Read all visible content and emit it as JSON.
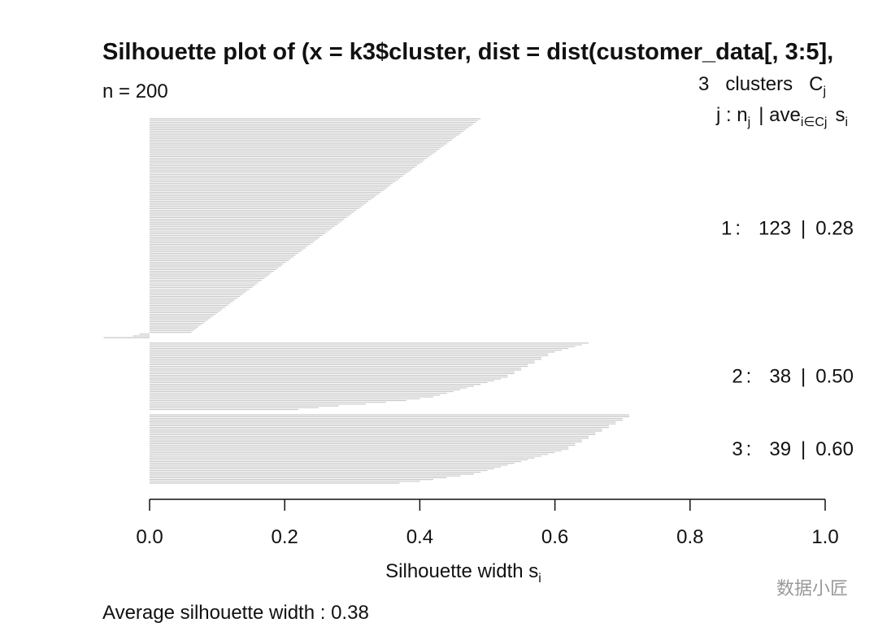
{
  "chart_data": {
    "type": "silhouette",
    "title": "Silhouette plot of (x = k3$cluster, dist = dist(customer_data[, 3:5],",
    "n_text": "n =",
    "n": 200,
    "cluster_header": {
      "count": 3,
      "word": "clusters",
      "symbol": "C",
      "symbol_sub": "j"
    },
    "column_header": [
      {
        "text": "j :  n",
        "sub": "j"
      },
      {
        "text": "| ave",
        "sub": "i∈Cj"
      },
      {
        "text": "s",
        "sub": "i"
      }
    ],
    "separators": [
      ":",
      "|"
    ],
    "clusters": {
      "ids": [
        1,
        2,
        3
      ],
      "sizes": [
        123,
        38,
        39
      ],
      "averages": [
        0.28,
        0.5,
        0.6
      ],
      "average_labels": [
        "0.28",
        "0.50",
        "0.60"
      ]
    },
    "x_label": "Silhouette width s",
    "x_label_sub": "i",
    "footer_text": "Average silhouette width :",
    "average": 0.38,
    "watermark": "数据小匠",
    "xlim": [
      0,
      1
    ],
    "xticks": [
      {
        "value": 0,
        "label": "0.0"
      },
      0.2,
      0.4,
      0.6,
      0.8,
      {
        "value": 1,
        "label": "1.0"
      }
    ],
    "series": [
      {
        "name": "1",
        "color": "#c8c8c8",
        "values": [
          0.49,
          0.486,
          0.483,
          0.479,
          0.476,
          0.472,
          0.468,
          0.465,
          0.461,
          0.458,
          0.454,
          0.45,
          0.447,
          0.443,
          0.44,
          0.436,
          0.432,
          0.429,
          0.425,
          0.422,
          0.418,
          0.414,
          0.411,
          0.407,
          0.404,
          0.4,
          0.396,
          0.393,
          0.389,
          0.386,
          0.382,
          0.378,
          0.375,
          0.371,
          0.368,
          0.364,
          0.36,
          0.357,
          0.353,
          0.35,
          0.346,
          0.342,
          0.339,
          0.335,
          0.332,
          0.328,
          0.324,
          0.321,
          0.317,
          0.314,
          0.31,
          0.306,
          0.303,
          0.299,
          0.296,
          0.292,
          0.288,
          0.285,
          0.281,
          0.278,
          0.274,
          0.27,
          0.267,
          0.263,
          0.26,
          0.256,
          0.252,
          0.249,
          0.245,
          0.242,
          0.238,
          0.234,
          0.231,
          0.227,
          0.224,
          0.22,
          0.216,
          0.213,
          0.209,
          0.206,
          0.202,
          0.198,
          0.195,
          0.191,
          0.188,
          0.184,
          0.18,
          0.177,
          0.173,
          0.17,
          0.166,
          0.162,
          0.159,
          0.155,
          0.152,
          0.148,
          0.144,
          0.141,
          0.137,
          0.134,
          0.13,
          0.126,
          0.123,
          0.119,
          0.116,
          0.112,
          0.108,
          0.105,
          0.101,
          0.098,
          0.094,
          0.09,
          0.087,
          0.083,
          0.08,
          0.076,
          0.072,
          0.069,
          0.065,
          0.062,
          -0.015,
          -0.025,
          -0.068
        ]
      },
      {
        "name": "2",
        "color": "#c8c8c8",
        "values": [
          0.65,
          0.64,
          0.63,
          0.62,
          0.61,
          0.6,
          0.59,
          0.59,
          0.58,
          0.58,
          0.57,
          0.57,
          0.56,
          0.56,
          0.55,
          0.55,
          0.54,
          0.54,
          0.53,
          0.53,
          0.52,
          0.51,
          0.5,
          0.49,
          0.48,
          0.47,
          0.46,
          0.45,
          0.44,
          0.43,
          0.42,
          0.4,
          0.38,
          0.35,
          0.32,
          0.28,
          0.25,
          0.22
        ]
      },
      {
        "name": "3",
        "color": "#c8c8c8",
        "values": [
          0.71,
          0.71,
          0.7,
          0.7,
          0.69,
          0.69,
          0.68,
          0.68,
          0.67,
          0.67,
          0.66,
          0.66,
          0.65,
          0.65,
          0.64,
          0.64,
          0.63,
          0.63,
          0.62,
          0.62,
          0.61,
          0.6,
          0.59,
          0.58,
          0.57,
          0.56,
          0.55,
          0.54,
          0.53,
          0.52,
          0.51,
          0.5,
          0.49,
          0.48,
          0.46,
          0.44,
          0.42,
          0.4,
          0.37
        ]
      }
    ]
  }
}
